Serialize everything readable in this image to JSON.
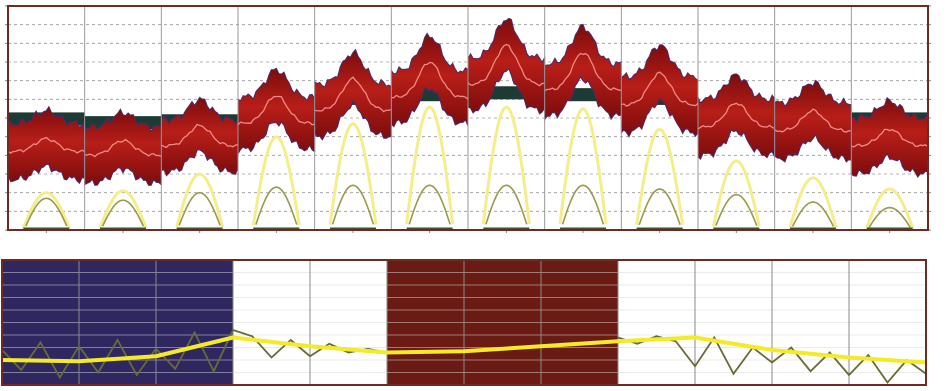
{
  "chart_data": [
    {
      "type": "area",
      "panel": "upper",
      "title": "",
      "xlabel": "",
      "ylabel": "",
      "months": 12,
      "ylim": [
        0,
        6
      ],
      "grid": true,
      "legend": "none",
      "colors": {
        "band": "#b81e18",
        "band_dark": "#7a0c0c",
        "median_line": "#f08a88",
        "baseline": "#1e3a34",
        "outer_bell": "#f3ee8a",
        "inner_bell": "#9a9a4e",
        "frame": "#6e2a22"
      },
      "series": [
        {
          "role": "monthly-baseline",
          "values": [
            2.95,
            2.85,
            2.9,
            3.2,
            3.5,
            3.6,
            3.65,
            3.6,
            3.5,
            3.2,
            3.1,
            2.95
          ]
        },
        {
          "role": "monthly-band-centre",
          "values": [
            2.1,
            2.0,
            2.25,
            2.85,
            3.2,
            3.55,
            3.9,
            3.75,
            3.35,
            2.75,
            2.65,
            2.25
          ]
        },
        {
          "role": "monthly-band-peak-offset",
          "values": [
            0.35,
            0.4,
            0.55,
            0.75,
            0.85,
            0.95,
            1.05,
            1.0,
            0.85,
            0.65,
            0.55,
            0.45
          ]
        },
        {
          "role": "monthly-band-halfwidth",
          "values": [
            0.75,
            0.75,
            0.7,
            0.7,
            0.7,
            0.7,
            0.7,
            0.7,
            0.75,
            0.75,
            0.75,
            0.75
          ]
        },
        {
          "role": "outer-bell-peak",
          "values": [
            1.0,
            1.05,
            1.5,
            2.5,
            2.85,
            3.3,
            3.3,
            3.25,
            2.7,
            1.85,
            1.4,
            1.1
          ]
        },
        {
          "role": "inner-bell-peak",
          "values": [
            0.85,
            0.8,
            1.0,
            1.15,
            1.2,
            1.2,
            1.2,
            1.2,
            1.1,
            0.95,
            0.75,
            0.6
          ]
        }
      ]
    },
    {
      "type": "line",
      "panel": "lower",
      "title": "",
      "xlabel": "",
      "ylabel": "",
      "months": 12,
      "ylim": [
        0,
        10
      ],
      "grid": true,
      "legend": "none",
      "colors": {
        "season_a": "#2f2760",
        "season_b": "#6a1c14",
        "trend_line": "#f4ea2a",
        "raw_line": "#6a6a38",
        "frame": "#6e2a22"
      },
      "shaded_months": [
        {
          "from": 0,
          "to": 3,
          "color": "season_a"
        },
        {
          "from": 5,
          "to": 8,
          "color": "season_b"
        }
      ],
      "series": [
        {
          "role": "trend",
          "x": [
            0,
            1,
            2,
            3,
            4,
            5,
            6,
            7,
            8,
            9,
            10,
            11,
            12
          ],
          "values": [
            2.0,
            1.9,
            2.3,
            3.8,
            3.1,
            2.6,
            2.7,
            3.1,
            3.5,
            3.8,
            2.8,
            2.2,
            1.8
          ]
        },
        {
          "role": "raw",
          "x": [
            0,
            0.25,
            0.5,
            0.75,
            1,
            1.25,
            1.5,
            1.75,
            2,
            2.25,
            2.5,
            2.75,
            3,
            3.25,
            3.5,
            3.75,
            4,
            4.25,
            4.5,
            4.75,
            5,
            8,
            8.25,
            8.5,
            8.75,
            9,
            9.25,
            9.5,
            9.75,
            10,
            10.25,
            10.5,
            10.75,
            11,
            11.25,
            11.5,
            11.75,
            12
          ],
          "values": [
            2.8,
            1.2,
            3.4,
            0.6,
            3.1,
            1.0,
            3.6,
            0.8,
            2.9,
            1.3,
            4.2,
            1.1,
            4.4,
            3.9,
            2.2,
            3.6,
            2.3,
            3.3,
            2.6,
            2.9,
            2.6,
            3.8,
            3.3,
            3.9,
            3.5,
            1.5,
            3.8,
            0.9,
            3.0,
            1.8,
            3.0,
            1.1,
            2.6,
            0.8,
            2.4,
            0.2,
            2.0,
            0.9
          ]
        }
      ]
    }
  ]
}
